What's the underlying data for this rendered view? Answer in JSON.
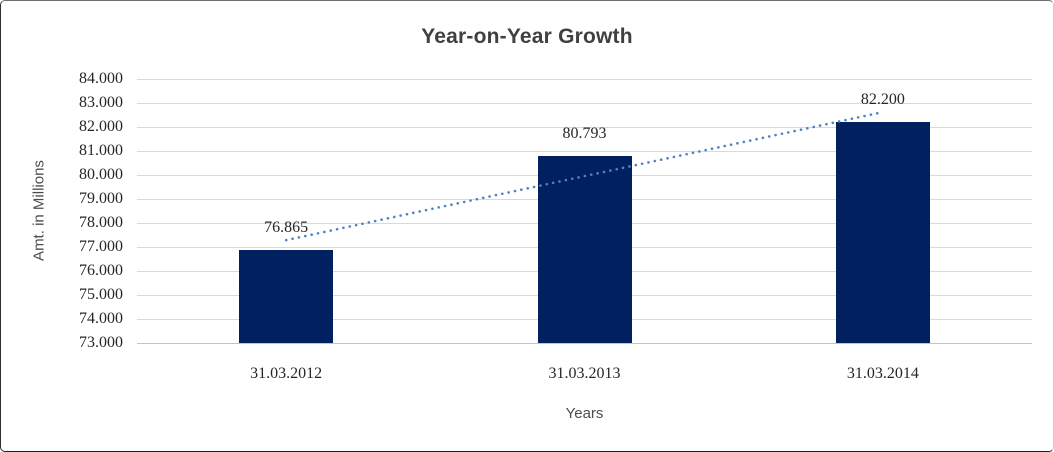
{
  "chart_data": {
    "type": "bar",
    "title": "Year-on-Year Growth",
    "xlabel": "Years",
    "ylabel": "Amt. in Millions",
    "categories": [
      "31.03.2012",
      "31.03.2013",
      "31.03.2014"
    ],
    "values": [
      76.865,
      80.793,
      82.2
    ],
    "data_labels": [
      "76.865",
      "80.793",
      "82.200"
    ],
    "ylim": [
      73,
      84
    ],
    "ytick_step": 1,
    "ytick_labels": [
      "84.000",
      "83.000",
      "82.000",
      "81.000",
      "80.000",
      "79.000",
      "78.000",
      "77.000",
      "76.000",
      "75.000",
      "74.000",
      "73.000"
    ],
    "grid": "horizontal",
    "legend": "none",
    "trendline": {
      "type": "linear",
      "style": "dotted"
    },
    "colors": {
      "bar": "#002060",
      "trend": "#4f82c2",
      "grid": "#d9d9d9",
      "axis_line": "#c3c3c3",
      "title": "#404040",
      "tick_text": "#262626",
      "axis_title": "#4d4d4d"
    }
  }
}
